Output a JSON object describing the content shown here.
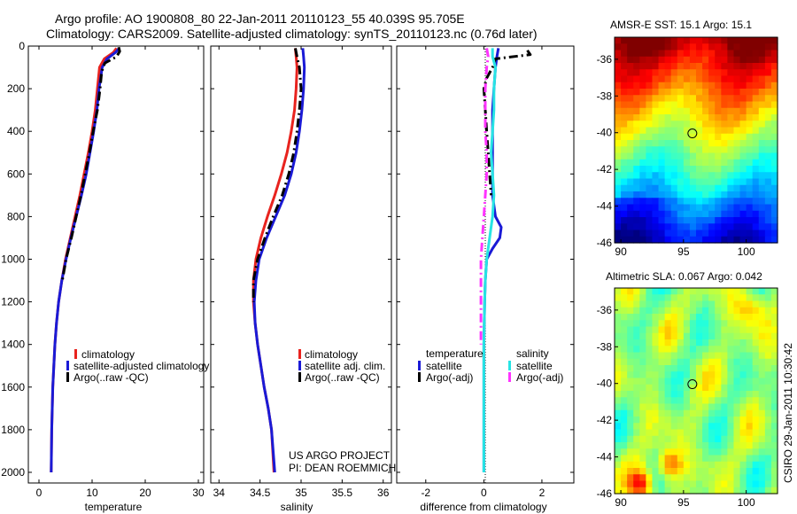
{
  "title_line1": "Argo profile: AO 1900808_80 22-Jan-2011 20110123_55 40.039S 95.705E",
  "title_line2": "Climatology: CARS2009. Satellite-adjusted climatology: synTS_20110123.nc (0.76d later)",
  "project_line1": "US ARGO PROJECT",
  "project_line2": "PI: DEAN ROEMMICH",
  "stamp": "CSIRO 29-Jan-2011 10:30:42",
  "colors": {
    "climatology": "#e8231e",
    "satellite": "#1a1ad6",
    "argo": "#000000",
    "sal_satellite": "#27e4e4",
    "sal_argo": "#ff33ff"
  },
  "chart_data": [
    {
      "type": "line",
      "name": "temperature-profile",
      "xlabel": "temperature",
      "ylabel": "",
      "xlim": [
        -2,
        31
      ],
      "ylim": [
        2050,
        0
      ],
      "xticks": [
        0,
        10,
        20,
        30
      ],
      "yticks": [
        0,
        200,
        400,
        600,
        800,
        1000,
        1200,
        1400,
        1600,
        1800,
        2000
      ],
      "legend": [
        "climatology",
        "satellite-adjusted climatology",
        "Argo(..raw -QC)"
      ],
      "series": [
        {
          "name": "climatology",
          "color": "#e8231e",
          "style": "solid",
          "x": [
            14.6,
            14.0,
            12.3,
            11.4,
            11.2,
            11.0,
            10.6,
            10.0,
            9.3,
            8.5,
            7.7,
            6.8,
            5.9,
            5.0,
            4.3,
            3.7,
            3.3,
            3.0,
            2.8,
            2.6,
            2.4,
            2.3
          ],
          "y": [
            10,
            30,
            60,
            100,
            150,
            200,
            300,
            400,
            500,
            600,
            700,
            800,
            900,
            1000,
            1100,
            1200,
            1300,
            1400,
            1500,
            1600,
            1800,
            2000
          ]
        },
        {
          "name": "satellite-adjusted climatology",
          "color": "#1a1ad6",
          "style": "solid",
          "x": [
            15.1,
            14.4,
            12.8,
            11.9,
            11.6,
            11.3,
            10.9,
            10.3,
            9.6,
            8.9,
            8.0,
            7.0,
            6.0,
            5.1,
            4.3,
            3.7,
            3.3,
            3.0,
            2.8,
            2.6,
            2.4,
            2.3
          ],
          "y": [
            10,
            30,
            60,
            100,
            150,
            200,
            300,
            400,
            500,
            600,
            700,
            800,
            900,
            1000,
            1100,
            1200,
            1300,
            1400,
            1500,
            1600,
            1800,
            2000
          ]
        },
        {
          "name": "Argo(..raw -QC)",
          "color": "#000000",
          "style": "dashed",
          "x": [
            15.0,
            15.2,
            14.6,
            12.4,
            11.8,
            11.5,
            11.0,
            10.2,
            9.5,
            8.7,
            7.9,
            7.0,
            6.1,
            5.1,
            4.4
          ],
          "y": [
            5,
            25,
            50,
            80,
            120,
            200,
            300,
            400,
            500,
            600,
            700,
            800,
            900,
            1000,
            1100
          ]
        }
      ]
    },
    {
      "type": "line",
      "name": "salinity-profile",
      "xlabel": "salinity",
      "xlim": [
        33.9,
        36.1
      ],
      "ylim": [
        2050,
        0
      ],
      "xticks": [
        34,
        34.5,
        35,
        35.5,
        36
      ],
      "legend": [
        "climatology",
        "satellite adj. clim.",
        "Argo(..raw -QC)"
      ],
      "series": [
        {
          "name": "climatology",
          "color": "#e8231e",
          "style": "solid",
          "x": [
            34.93,
            34.94,
            34.95,
            34.94,
            34.92,
            34.88,
            34.83,
            34.76,
            34.68,
            34.59,
            34.51,
            34.45,
            34.42,
            34.42,
            34.44,
            34.47,
            34.51,
            34.55,
            34.6,
            34.64,
            34.67
          ],
          "y": [
            10,
            50,
            100,
            200,
            300,
            400,
            500,
            600,
            700,
            800,
            900,
            1000,
            1100,
            1200,
            1300,
            1400,
            1500,
            1600,
            1700,
            1800,
            2000
          ]
        },
        {
          "name": "satellite adj. clim.",
          "color": "#1a1ad6",
          "style": "solid",
          "x": [
            35.02,
            35.03,
            35.04,
            35.03,
            35.01,
            34.98,
            34.94,
            34.88,
            34.8,
            34.69,
            34.58,
            34.49,
            34.45,
            34.43,
            34.44,
            34.47,
            34.51,
            34.55,
            34.6,
            34.64,
            34.68
          ],
          "y": [
            10,
            50,
            100,
            200,
            300,
            400,
            500,
            600,
            700,
            800,
            900,
            1000,
            1100,
            1200,
            1300,
            1400,
            1500,
            1600,
            1700,
            1800,
            2000
          ]
        },
        {
          "name": "Argo(..raw -QC)",
          "color": "#000000",
          "style": "dashed",
          "x": [
            34.93,
            34.95,
            34.98,
            35.0,
            34.98,
            34.95,
            34.91,
            34.85,
            34.77,
            34.66,
            34.56,
            34.47,
            34.42,
            34.42
          ],
          "y": [
            10,
            50,
            100,
            200,
            300,
            400,
            500,
            600,
            700,
            800,
            900,
            1000,
            1100,
            1200
          ]
        }
      ]
    },
    {
      "type": "line",
      "name": "difference-profile",
      "xlabel": "difference from climatology",
      "xlim": [
        -3,
        3.1
      ],
      "ylim": [
        2050,
        0
      ],
      "xticks": [
        -2,
        0,
        2
      ],
      "legend_temperature": [
        "temperature",
        "satellite",
        "Argo(-adj)"
      ],
      "legend_salinity": [
        "salinity",
        "satellite",
        "Argo(-adj)"
      ],
      "series": [
        {
          "name": "temperature satellite",
          "color": "#1a1ad6",
          "style": "solid",
          "x": [
            0.5,
            0.45,
            0.4,
            0.35,
            0.3,
            0.3,
            0.3,
            0.3,
            0.3,
            0.4,
            0.6,
            0.55,
            0.3,
            0.1,
            0.05,
            0.03,
            0.0,
            0.0,
            0.0,
            0.0
          ],
          "y": [
            10,
            50,
            100,
            200,
            300,
            400,
            500,
            600,
            700,
            800,
            850,
            900,
            950,
            1000,
            1100,
            1200,
            1400,
            1600,
            1800,
            2000
          ]
        },
        {
          "name": "temperature Argo(-adj)",
          "color": "#000000",
          "style": "dashed",
          "x": [
            1.5,
            1.6,
            0.4,
            0.3,
            0.1,
            0.0,
            0.05,
            0.1,
            0.15,
            0.2,
            0.25
          ],
          "y": [
            20,
            40,
            60,
            100,
            150,
            200,
            300,
            400,
            500,
            600,
            700
          ]
        },
        {
          "name": "salinity satellite",
          "color": "#27e4e4",
          "style": "solid",
          "x": [
            0.3,
            0.3,
            0.4,
            0.35,
            0.35,
            0.3,
            0.25,
            0.3,
            0.35,
            0.3,
            0.2,
            0.1,
            0.05,
            0.03,
            0.0,
            0.0,
            0.0,
            0.0
          ],
          "y": [
            10,
            50,
            100,
            200,
            300,
            400,
            500,
            600,
            700,
            800,
            900,
            1000,
            1100,
            1200,
            1400,
            1600,
            1800,
            2000
          ]
        },
        {
          "name": "salinity Argo(-adj)",
          "color": "#ff33ff",
          "style": "dashed",
          "x": [
            0.1,
            0.15,
            0.1,
            0.05,
            0.05,
            0.05,
            0.1,
            0.1,
            0.05,
            0.0,
            -0.05,
            -0.1,
            -0.1,
            -0.1,
            -0.1
          ],
          "y": [
            10,
            50,
            100,
            200,
            300,
            400,
            500,
            600,
            700,
            800,
            900,
            1000,
            1100,
            1200,
            1400
          ]
        }
      ]
    },
    {
      "type": "heatmap",
      "name": "sst-map",
      "title": "AMSR-E SST: 15.1 Argo: 15.1",
      "xlim": [
        89.5,
        102.5
      ],
      "ylim": [
        -46,
        -34.8
      ],
      "xticks": [
        90,
        95,
        100
      ],
      "yticks": [
        -36,
        -38,
        -40,
        -42,
        -44,
        -46
      ],
      "marker": {
        "lon": 95.705,
        "lat": -40.039
      }
    },
    {
      "type": "heatmap",
      "name": "sla-map",
      "title": "Altimetric SLA: 0.067 Argo: 0.042",
      "xlim": [
        89.5,
        102.5
      ],
      "ylim": [
        -46,
        -34.8
      ],
      "xticks": [
        90,
        95,
        100
      ],
      "yticks": [
        -36,
        -38,
        -40,
        -42,
        -44,
        -46
      ],
      "marker": {
        "lon": 95.705,
        "lat": -40.039
      }
    }
  ]
}
